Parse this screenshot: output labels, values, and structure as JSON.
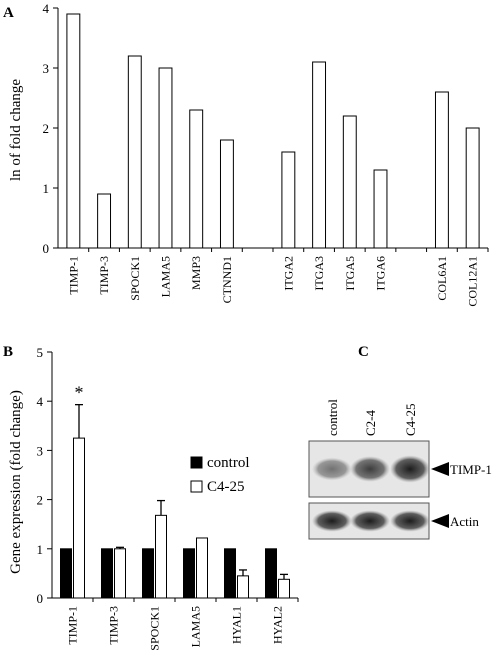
{
  "panels": {
    "a_letter": "A",
    "b_letter": "B",
    "c_letter": "C"
  },
  "chart_data": [
    {
      "type": "bar",
      "ylabel": "ln of fold change",
      "ylim": [
        0,
        4
      ],
      "yticks": [
        0,
        1,
        2,
        3,
        4
      ],
      "bar_fill": "#ffffff",
      "bar_stroke": "#000000",
      "groups": [
        {
          "categories": [
            "TIMP-1",
            "TIMP-3",
            "SPOCK1",
            "LAMA5",
            "MMP3",
            "CTNND1"
          ],
          "values": [
            3.9,
            0.9,
            3.2,
            3.0,
            2.3,
            1.8
          ]
        },
        {
          "categories": [
            "ITGA2",
            "ITGA3",
            "ITGA5",
            "ITGA6"
          ],
          "values": [
            1.6,
            3.1,
            2.2,
            1.3
          ]
        },
        {
          "categories": [
            "COL6A1",
            "COL12A1"
          ],
          "values": [
            2.6,
            2.0
          ]
        }
      ]
    },
    {
      "type": "bar",
      "ylabel": "Gene expression (fold change)",
      "ylim": [
        0,
        5
      ],
      "yticks": [
        0,
        1,
        2,
        3,
        4,
        5
      ],
      "categories": [
        "TIMP-1",
        "TIMP-3",
        "SPOCK1",
        "LAMA5",
        "HYAL1",
        "HYAL2"
      ],
      "series": [
        {
          "name": "control",
          "color": "#000000",
          "values": [
            1,
            1,
            1,
            1,
            1,
            1
          ],
          "errors": [
            0,
            0,
            0,
            0,
            0,
            0
          ]
        },
        {
          "name": "C4-25",
          "color": "#ffffff",
          "values": [
            3.25,
            1.0,
            1.68,
            1.22,
            0.45,
            0.38
          ],
          "errors": [
            0.68,
            0.03,
            0.3,
            0,
            0.12,
            0.1
          ]
        }
      ],
      "annotations": [
        {
          "category": "TIMP-1",
          "text": "*"
        }
      ],
      "legend": "right"
    }
  ],
  "blot": {
    "lanes": [
      "control",
      "C2-4",
      "C4-25"
    ],
    "bands": [
      {
        "label": "TIMP-1",
        "intensity": [
          0.55,
          0.8,
          0.95
        ]
      },
      {
        "label": "Actin",
        "intensity": [
          0.95,
          0.95,
          0.95
        ]
      }
    ]
  }
}
